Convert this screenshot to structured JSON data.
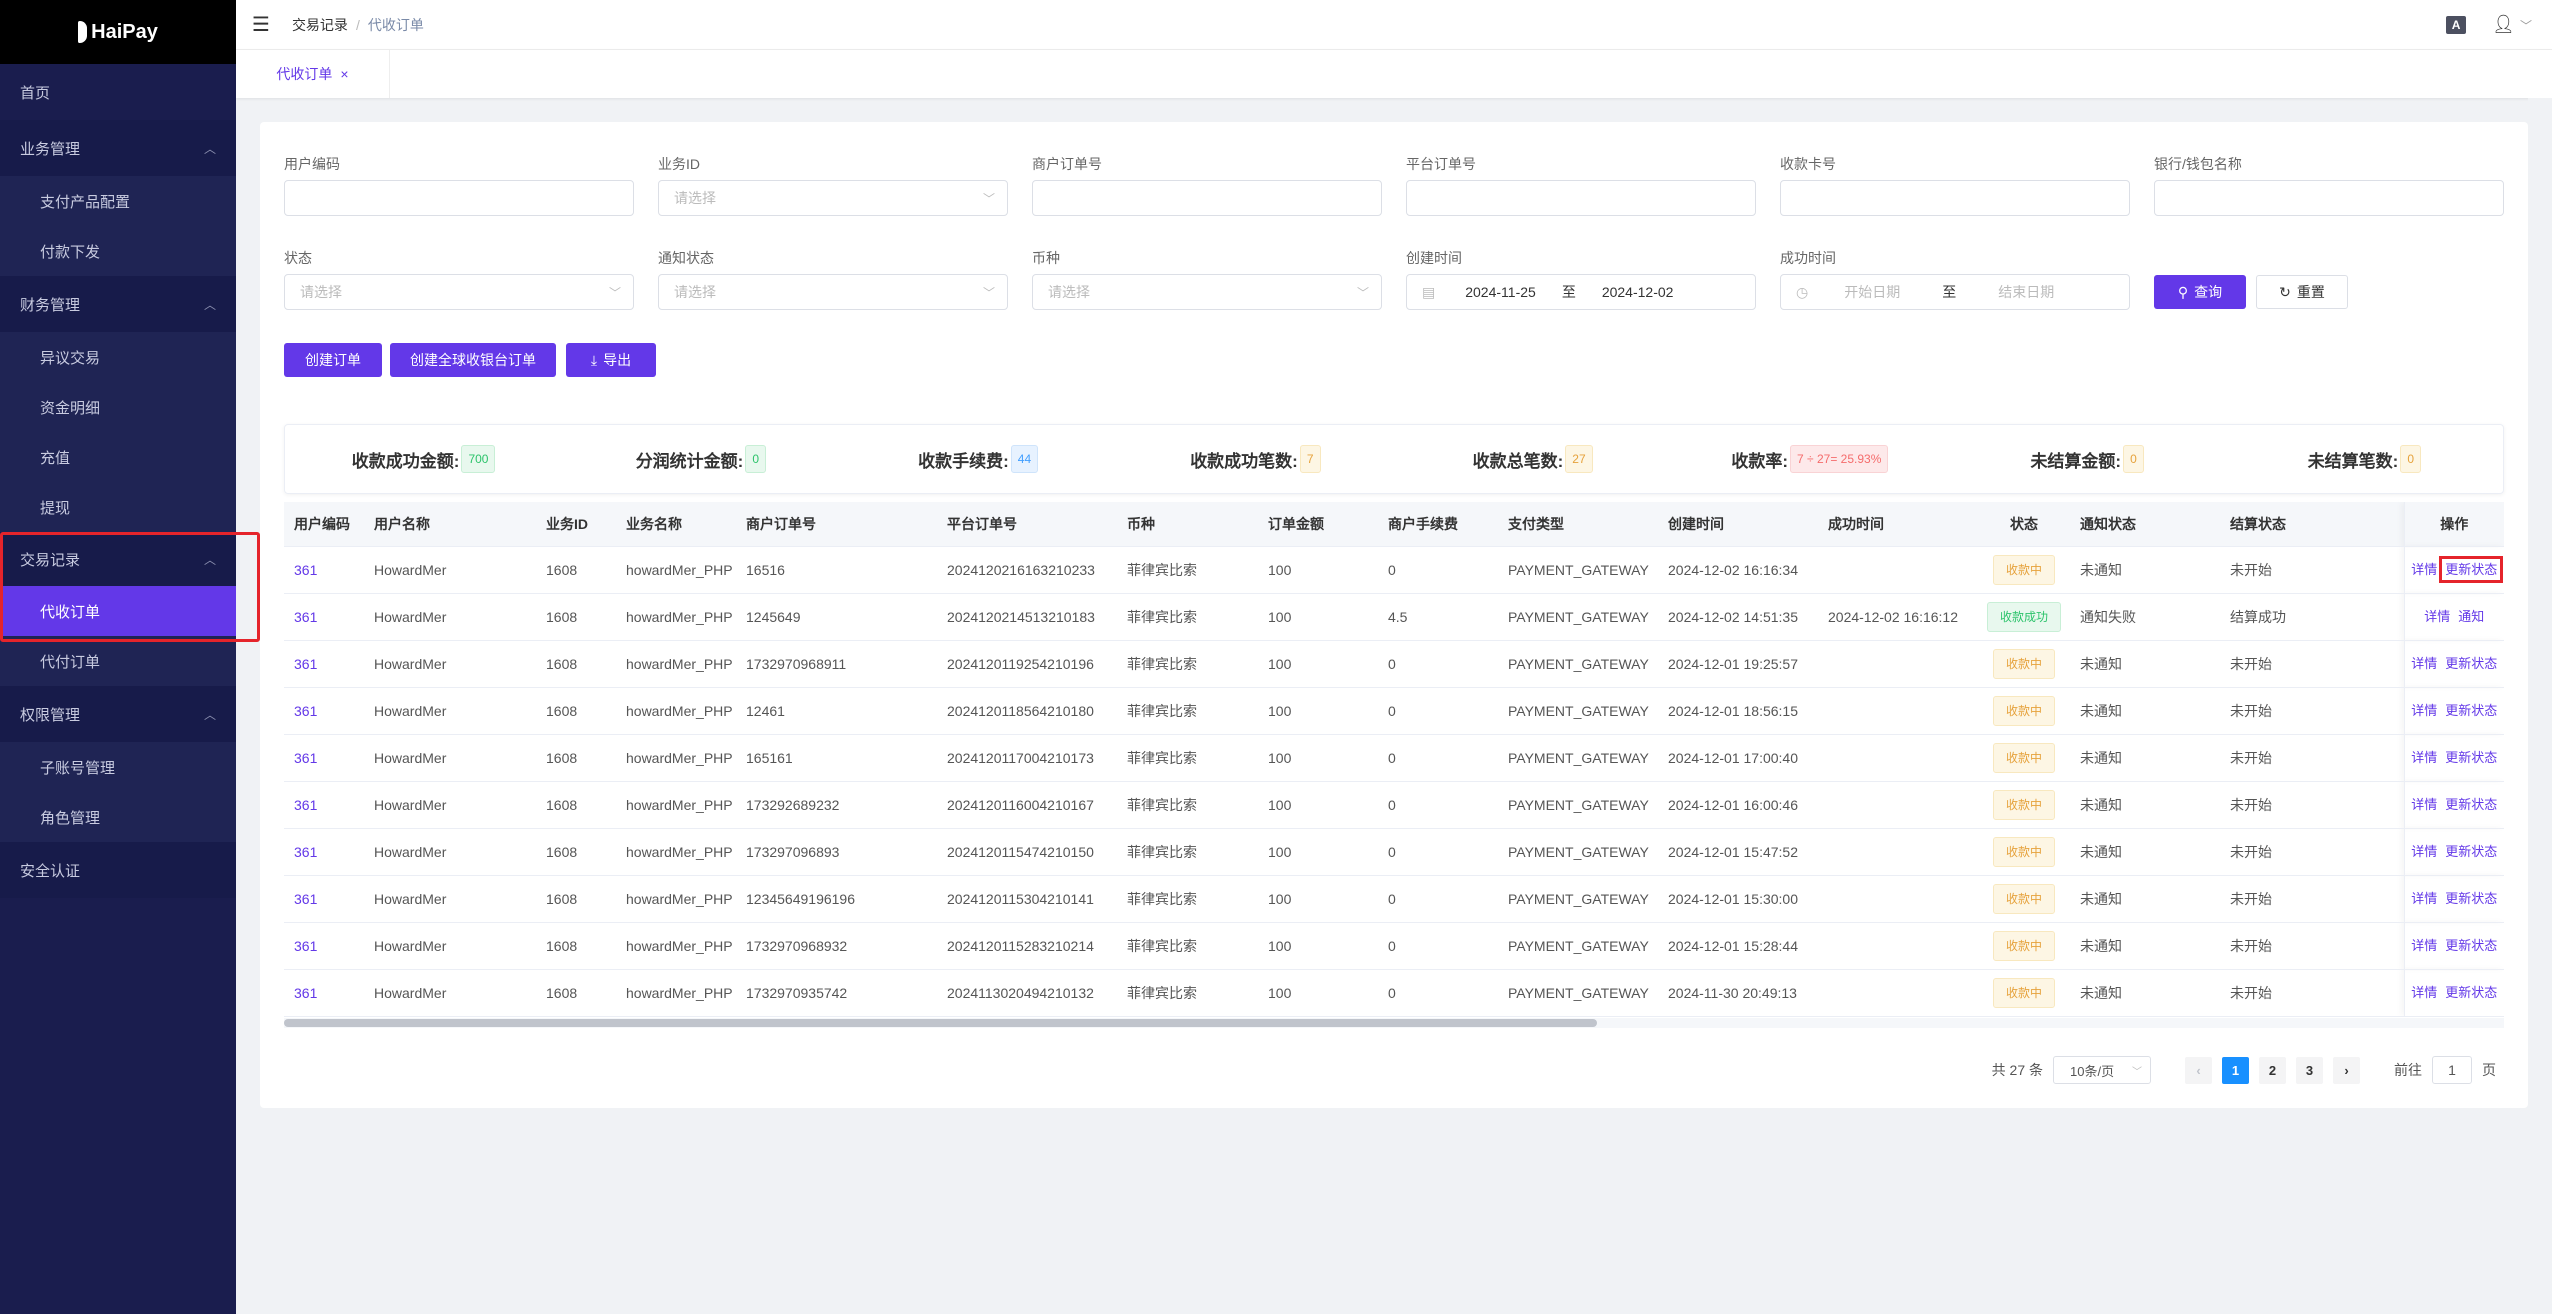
{
  "app": {
    "logo_text": "HaiPay"
  },
  "sidebar": {
    "items": [
      {
        "label": "首页"
      },
      {
        "label": "业务管理",
        "children": [
          {
            "label": "支付产品配置"
          },
          {
            "label": "付款下发"
          }
        ]
      },
      {
        "label": "财务管理",
        "children": [
          {
            "label": "异议交易"
          },
          {
            "label": "资金明细"
          },
          {
            "label": "充值"
          },
          {
            "label": "提现"
          }
        ]
      },
      {
        "label": "交易记录",
        "children": [
          {
            "label": "代收订单",
            "active": true
          },
          {
            "label": "代付订单"
          }
        ]
      },
      {
        "label": "权限管理",
        "children": [
          {
            "label": "子账号管理"
          },
          {
            "label": "角色管理"
          }
        ]
      },
      {
        "label": "安全认证"
      }
    ]
  },
  "header": {
    "breadcrumb": [
      "交易记录",
      "代收订单"
    ],
    "lang_icon_text": "A"
  },
  "tabs": [
    {
      "label": "代收订单",
      "close": "×"
    }
  ],
  "filters": {
    "user_code": {
      "label": "用户编码",
      "value": ""
    },
    "business_id": {
      "label": "业务ID",
      "placeholder": "请选择"
    },
    "merchant_order": {
      "label": "商户订单号",
      "value": ""
    },
    "platform_order": {
      "label": "平台订单号",
      "value": ""
    },
    "card_no": {
      "label": "收款卡号",
      "value": ""
    },
    "bank_name": {
      "label": "银行/钱包名称",
      "value": ""
    },
    "status": {
      "label": "状态",
      "placeholder": "请选择"
    },
    "notify_status": {
      "label": "通知状态",
      "placeholder": "请选择"
    },
    "currency": {
      "label": "币种",
      "placeholder": "请选择"
    },
    "create_time": {
      "label": "创建时间",
      "start": "2024-11-25",
      "sep": "至",
      "end": "2024-12-02"
    },
    "success_time": {
      "label": "成功时间",
      "start_placeholder": "开始日期",
      "sep": "至",
      "end_placeholder": "结束日期"
    },
    "query_label": "查询",
    "reset_label": "重置"
  },
  "actions": {
    "create_order": "创建订单",
    "create_global": "创建全球收银台订单",
    "export": "导出"
  },
  "stats": [
    {
      "label": "收款成功金额:",
      "value": "700",
      "color": "green"
    },
    {
      "label": "分润统计金额:",
      "value": "0",
      "color": "green"
    },
    {
      "label": "收款手续费:",
      "value": "44",
      "color": "blue"
    },
    {
      "label": "收款成功笔数:",
      "value": "7",
      "color": "yellow"
    },
    {
      "label": "收款总笔数:",
      "value": "27",
      "color": "yellow"
    },
    {
      "label": "收款率:",
      "value": "7 ÷ 27= 25.93%",
      "color": "red"
    },
    {
      "label": "未结算金额:",
      "value": "0",
      "color": "yellow"
    },
    {
      "label": "未结算笔数:",
      "value": "0",
      "color": "yellow"
    }
  ],
  "table": {
    "columns": [
      "用户编码",
      "用户名称",
      "业务ID",
      "业务名称",
      "商户订单号",
      "平台订单号",
      "币种",
      "订单金额",
      "商户手续费",
      "支付类型",
      "创建时间",
      "成功时间",
      "状态",
      "通知状态",
      "结算状态",
      "操作"
    ],
    "rows": [
      {
        "user_code": "361",
        "user_name": "HowardMer",
        "biz_id": "1608",
        "biz_name": "howardMer_PHP",
        "merchant_order": "16516",
        "platform_order": "2024120216163210233",
        "currency": "菲律宾比索",
        "amount": "100",
        "fee": "0",
        "pay_type": "PAYMENT_GATEWAY",
        "created": "2024-12-02 16:16:34",
        "succeeded": "",
        "status": "收款中",
        "notify": "未通知",
        "settle": "未开始",
        "ops": [
          "详情",
          "更新状态"
        ]
      },
      {
        "user_code": "361",
        "user_name": "HowardMer",
        "biz_id": "1608",
        "biz_name": "howardMer_PHP",
        "merchant_order": "1245649",
        "platform_order": "2024120214513210183",
        "currency": "菲律宾比索",
        "amount": "100",
        "fee": "4.5",
        "pay_type": "PAYMENT_GATEWAY",
        "created": "2024-12-02 14:51:35",
        "succeeded": "2024-12-02 16:16:12",
        "status": "收款成功",
        "notify": "通知失败",
        "settle": "结算成功",
        "ops": [
          "详情",
          "通知"
        ]
      },
      {
        "user_code": "361",
        "user_name": "HowardMer",
        "biz_id": "1608",
        "biz_name": "howardMer_PHP",
        "merchant_order": "1732970968911",
        "platform_order": "2024120119254210196",
        "currency": "菲律宾比索",
        "amount": "100",
        "fee": "0",
        "pay_type": "PAYMENT_GATEWAY",
        "created": "2024-12-01 19:25:57",
        "succeeded": "",
        "status": "收款中",
        "notify": "未通知",
        "settle": "未开始",
        "ops": [
          "详情",
          "更新状态"
        ]
      },
      {
        "user_code": "361",
        "user_name": "HowardMer",
        "biz_id": "1608",
        "biz_name": "howardMer_PHP",
        "merchant_order": "12461",
        "platform_order": "2024120118564210180",
        "currency": "菲律宾比索",
        "amount": "100",
        "fee": "0",
        "pay_type": "PAYMENT_GATEWAY",
        "created": "2024-12-01 18:56:15",
        "succeeded": "",
        "status": "收款中",
        "notify": "未通知",
        "settle": "未开始",
        "ops": [
          "详情",
          "更新状态"
        ]
      },
      {
        "user_code": "361",
        "user_name": "HowardMer",
        "biz_id": "1608",
        "biz_name": "howardMer_PHP",
        "merchant_order": "165161",
        "platform_order": "2024120117004210173",
        "currency": "菲律宾比索",
        "amount": "100",
        "fee": "0",
        "pay_type": "PAYMENT_GATEWAY",
        "created": "2024-12-01 17:00:40",
        "succeeded": "",
        "status": "收款中",
        "notify": "未通知",
        "settle": "未开始",
        "ops": [
          "详情",
          "更新状态"
        ]
      },
      {
        "user_code": "361",
        "user_name": "HowardMer",
        "biz_id": "1608",
        "biz_name": "howardMer_PHP",
        "merchant_order": "173292689232",
        "platform_order": "2024120116004210167",
        "currency": "菲律宾比索",
        "amount": "100",
        "fee": "0",
        "pay_type": "PAYMENT_GATEWAY",
        "created": "2024-12-01 16:00:46",
        "succeeded": "",
        "status": "收款中",
        "notify": "未通知",
        "settle": "未开始",
        "ops": [
          "详情",
          "更新状态"
        ]
      },
      {
        "user_code": "361",
        "user_name": "HowardMer",
        "biz_id": "1608",
        "biz_name": "howardMer_PHP",
        "merchant_order": "173297096893",
        "platform_order": "2024120115474210150",
        "currency": "菲律宾比索",
        "amount": "100",
        "fee": "0",
        "pay_type": "PAYMENT_GATEWAY",
        "created": "2024-12-01 15:47:52",
        "succeeded": "",
        "status": "收款中",
        "notify": "未通知",
        "settle": "未开始",
        "ops": [
          "详情",
          "更新状态"
        ]
      },
      {
        "user_code": "361",
        "user_name": "HowardMer",
        "biz_id": "1608",
        "biz_name": "howardMer_PHP",
        "merchant_order": "12345649196196",
        "platform_order": "2024120115304210141",
        "currency": "菲律宾比索",
        "amount": "100",
        "fee": "0",
        "pay_type": "PAYMENT_GATEWAY",
        "created": "2024-12-01 15:30:00",
        "succeeded": "",
        "status": "收款中",
        "notify": "未通知",
        "settle": "未开始",
        "ops": [
          "详情",
          "更新状态"
        ]
      },
      {
        "user_code": "361",
        "user_name": "HowardMer",
        "biz_id": "1608",
        "biz_name": "howardMer_PHP",
        "merchant_order": "1732970968932",
        "platform_order": "2024120115283210214",
        "currency": "菲律宾比索",
        "amount": "100",
        "fee": "0",
        "pay_type": "PAYMENT_GATEWAY",
        "created": "2024-12-01 15:28:44",
        "succeeded": "",
        "status": "收款中",
        "notify": "未通知",
        "settle": "未开始",
        "ops": [
          "详情",
          "更新状态"
        ]
      },
      {
        "user_code": "361",
        "user_name": "HowardMer",
        "biz_id": "1608",
        "biz_name": "howardMer_PHP",
        "merchant_order": "1732970935742",
        "platform_order": "2024113020494210132",
        "currency": "菲律宾比索",
        "amount": "100",
        "fee": "0",
        "pay_type": "PAYMENT_GATEWAY",
        "created": "2024-11-30 20:49:13",
        "succeeded": "",
        "status": "收款中",
        "notify": "未通知",
        "settle": "未开始",
        "ops": [
          "详情",
          "更新状态"
        ]
      }
    ]
  },
  "pagination": {
    "total": "共 27 条",
    "page_size": "10条/页",
    "pages": [
      "1",
      "2",
      "3"
    ],
    "current": "1",
    "goto_label": "前往",
    "goto_value": "1",
    "page_suffix": "页"
  },
  "colors": {
    "primary": "#6338e8",
    "sidebar_bg": "#1a1d4e",
    "highlight": "#e5242b",
    "page_active": "#1890ff"
  }
}
